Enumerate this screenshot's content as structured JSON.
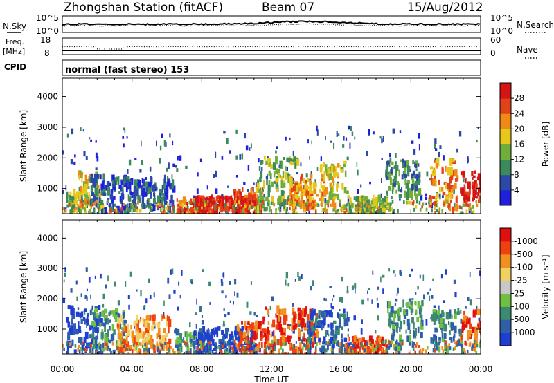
{
  "header": {
    "station": "Zhongshan Station (fitACF)",
    "beam": "Beam 07",
    "date": "15/Aug/2012"
  },
  "panels": {
    "nsky": {
      "label": "N.Sky",
      "tick_top": "10^5",
      "tick_bottom": "10^0",
      "right_label": "N.Search",
      "right_tick_top": "10^5",
      "right_tick_bottom": "10^0"
    },
    "freq": {
      "label_line1": "Freq.",
      "label_line2": "[MHz]",
      "tick_top": "18",
      "tick_bottom": "8",
      "right_label": "Nave",
      "right_tick_top": "60",
      "right_tick_bottom": "0"
    },
    "cpid": {
      "label": "CPID",
      "text": "normal (fast stereo) 153"
    }
  },
  "chart_data": [
    {
      "type": "heatmap",
      "title": "",
      "ylabel": "Slant Range [km]",
      "xlabel": "",
      "ylim": [
        180,
        4600
      ],
      "yticks": [
        1000,
        2000,
        3000,
        4000
      ],
      "xlim_hours": [
        0,
        24
      ],
      "colorbar": {
        "label": "Power [dB]",
        "ticks": [
          "4",
          "8",
          "12",
          "16",
          "20",
          "24",
          "28"
        ],
        "colors": [
          "#1f1fe0",
          "#2d49a8",
          "#3c8a5a",
          "#6fae3c",
          "#e7c81a",
          "#f08a16",
          "#e0431a",
          "#d51414"
        ]
      },
      "blobs": [
        {
          "t": 0.8,
          "r": 550,
          "w": 0.7,
          "h": 500,
          "lvl": 3
        },
        {
          "t": 1.5,
          "r": 1000,
          "w": 0.6,
          "h": 600,
          "lvl": 4
        },
        {
          "t": 2.7,
          "r": 800,
          "w": 1.2,
          "h": 700,
          "lvl": 1
        },
        {
          "t": 4.8,
          "r": 900,
          "w": 1.5,
          "h": 500,
          "lvl": 1
        },
        {
          "t": 7.5,
          "r": 450,
          "w": 1.0,
          "h": 300,
          "lvl": 6
        },
        {
          "t": 9.2,
          "r": 560,
          "w": 1.6,
          "h": 250,
          "lvl": 7
        },
        {
          "t": 10.6,
          "r": 600,
          "w": 0.8,
          "h": 450,
          "lvl": 6
        },
        {
          "t": 12.3,
          "r": 1200,
          "w": 1.2,
          "h": 900,
          "lvl": 3
        },
        {
          "t": 14.0,
          "r": 1000,
          "w": 1.0,
          "h": 500,
          "lvl": 5
        },
        {
          "t": 15.5,
          "r": 1100,
          "w": 0.8,
          "h": 800,
          "lvl": 4
        },
        {
          "t": 17.5,
          "r": 500,
          "w": 1.2,
          "h": 300,
          "lvl": 3
        },
        {
          "t": 19.5,
          "r": 1400,
          "w": 1.0,
          "h": 600,
          "lvl": 2
        },
        {
          "t": 21.8,
          "r": 1200,
          "w": 0.8,
          "h": 800,
          "lvl": 5
        },
        {
          "t": 23.4,
          "r": 1100,
          "w": 0.6,
          "h": 500,
          "lvl": 7
        }
      ]
    },
    {
      "type": "heatmap",
      "title": "",
      "ylabel": "Slant Range [km]",
      "xlabel": "Time UT",
      "ylim": [
        180,
        4600
      ],
      "yticks": [
        1000,
        2000,
        3000,
        4000
      ],
      "xticks": [
        "00:00",
        "04:00",
        "08:00",
        "12:00",
        "16:00",
        "20:00",
        "00:00"
      ],
      "xlim_hours": [
        0,
        24
      ],
      "colorbar": {
        "label": "Velocity [m s⁻¹]",
        "ticks": [
          "1000",
          "500",
          "100",
          "25",
          "-25",
          "-100",
          "-500",
          "-1000"
        ],
        "colors": [
          "#1f3fd0",
          "#2f5fa8",
          "#3c8a70",
          "#6fc040",
          "#c8c8c8",
          "#f0d060",
          "#f09020",
          "#f04010",
          "#e01010"
        ]
      },
      "blobs": [
        {
          "t": 1.2,
          "r": 1000,
          "w": 1.0,
          "h": 800,
          "lvl": 0
        },
        {
          "t": 2.6,
          "r": 1000,
          "w": 1.0,
          "h": 700,
          "lvl": 2
        },
        {
          "t": 4.6,
          "r": 900,
          "w": 1.5,
          "h": 600,
          "lvl": 6
        },
        {
          "t": 7.4,
          "r": 600,
          "w": 1.0,
          "h": 450,
          "lvl": 2
        },
        {
          "t": 9.3,
          "r": 650,
          "w": 1.8,
          "h": 500,
          "lvl": 0
        },
        {
          "t": 10.8,
          "r": 700,
          "w": 0.8,
          "h": 600,
          "lvl": 7
        },
        {
          "t": 13.0,
          "r": 1000,
          "w": 1.6,
          "h": 800,
          "lvl": 7
        },
        {
          "t": 15.2,
          "r": 1000,
          "w": 1.2,
          "h": 700,
          "lvl": 1
        },
        {
          "t": 17.4,
          "r": 500,
          "w": 1.2,
          "h": 300,
          "lvl": 7
        },
        {
          "t": 19.6,
          "r": 1200,
          "w": 1.0,
          "h": 800,
          "lvl": 2
        },
        {
          "t": 22.0,
          "r": 1000,
          "w": 0.9,
          "h": 700,
          "lvl": 2
        },
        {
          "t": 23.4,
          "r": 1100,
          "w": 0.6,
          "h": 600,
          "lvl": 7
        }
      ]
    }
  ]
}
